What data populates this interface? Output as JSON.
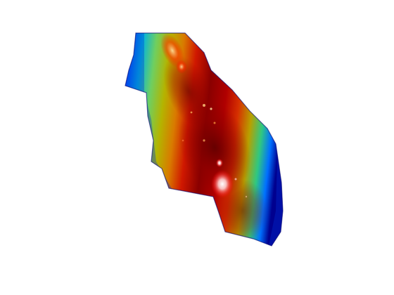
{
  "figure": {
    "background": "#ffffff",
    "colormap": [
      "#00008f",
      "#0050ff",
      "#00c8ff",
      "#7fff7f",
      "#c8c800",
      "#ff7f00",
      "#e00000",
      "#800000"
    ],
    "highlight": "#ffffff",
    "description_kind": "3d-surface-render"
  }
}
